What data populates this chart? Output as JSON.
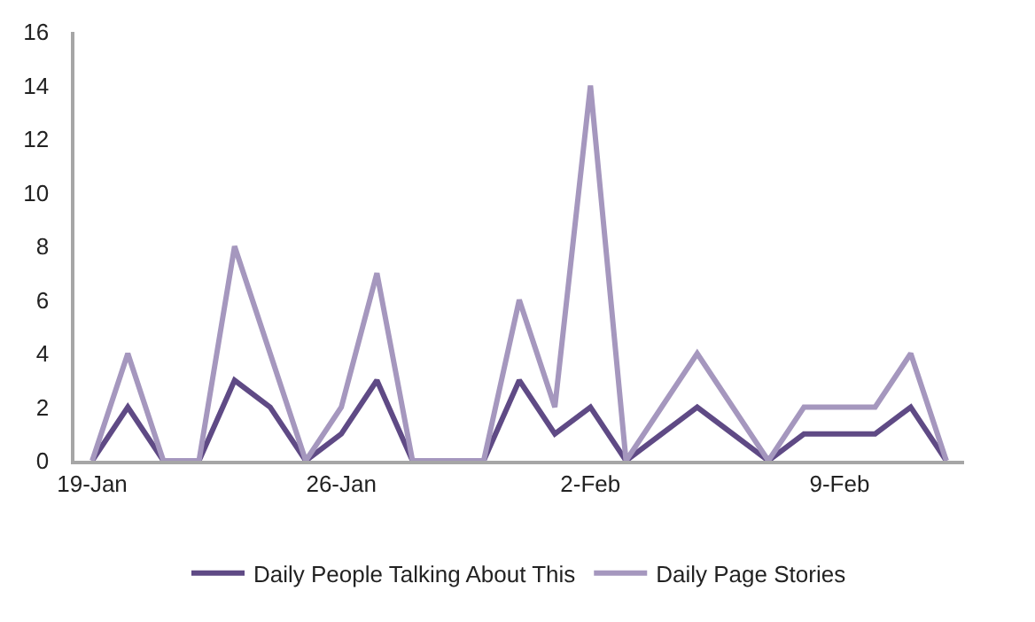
{
  "chart_data": {
    "type": "line",
    "x": [
      "--01-19",
      "--01-20",
      "--01-21",
      "--01-22",
      "--01-23",
      "--01-24",
      "--01-25",
      "--01-26",
      "--01-27",
      "--01-28",
      "--01-29",
      "--01-30",
      "--01-31",
      "--02-01",
      "--02-02",
      "--02-03",
      "--02-04",
      "--02-05",
      "--02-06",
      "--02-07",
      "--02-08",
      "--02-09",
      "--02-10",
      "--02-11",
      "--02-12"
    ],
    "series": [
      {
        "name": "Daily People Talking About This",
        "color": "#5f4a85",
        "values": [
          0,
          2,
          0,
          0,
          3,
          2,
          0,
          1,
          3,
          0,
          0,
          0,
          3,
          1,
          2,
          0,
          1,
          2,
          1,
          0,
          1,
          1,
          1,
          2,
          0
        ]
      },
      {
        "name": "Daily Page Stories",
        "color": "#a597be",
        "values": [
          0,
          4,
          0,
          0,
          8,
          4,
          0,
          2,
          7,
          0,
          0,
          0,
          6,
          2,
          14,
          0,
          2,
          4,
          2,
          0,
          2,
          2,
          2,
          4,
          0
        ]
      }
    ],
    "xlim": [
      "--01-18T12:00",
      "--02-12T12:00"
    ],
    "xticks": [
      {
        "value": "--01-19",
        "label": "19-Jan"
      },
      {
        "value": "--01-26",
        "label": "26-Jan"
      },
      {
        "value": "--02-02",
        "label": "2-Feb"
      },
      {
        "value": "--02-09",
        "label": "9-Feb"
      }
    ],
    "ylim": [
      0,
      16
    ],
    "yticks": [
      0,
      2,
      4,
      6,
      8,
      10,
      12,
      14,
      16
    ],
    "grid": false,
    "legend": "bottom",
    "marker": "none",
    "line_style": "solid"
  }
}
